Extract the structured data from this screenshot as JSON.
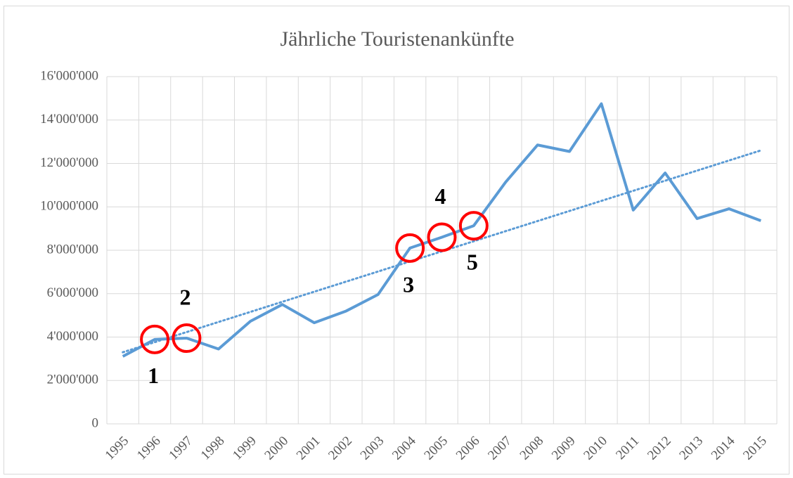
{
  "chart_data": {
    "type": "line",
    "title": "Jährliche Touristenankünfte",
    "categories": [
      "1995",
      "1996",
      "1997",
      "1998",
      "1999",
      "2000",
      "2001",
      "2002",
      "2003",
      "2004",
      "2005",
      "2006",
      "2007",
      "2008",
      "2009",
      "2010",
      "2011",
      "2012",
      "2013",
      "2014",
      "2015"
    ],
    "series": [
      {
        "color": "#5b9bd5",
        "values": [
          3110000,
          3890000,
          3950000,
          3450000,
          4730000,
          5500000,
          4660000,
          5200000,
          5960000,
          8100000,
          8600000,
          9130000,
          11140000,
          12850000,
          12550000,
          14750000,
          9850000,
          11560000,
          9460000,
          9910000,
          9360000
        ]
      }
    ],
    "trendline": {
      "color": "#5b9bd5",
      "values": [
        3300000,
        12600000
      ]
    },
    "annotations": [
      {
        "text": "1",
        "index": 1,
        "position": "below"
      },
      {
        "text": "2",
        "index": 2,
        "position": "above"
      },
      {
        "text": "3",
        "index": 9,
        "position": "below"
      },
      {
        "text": "4",
        "index": 10,
        "position": "above"
      },
      {
        "text": "5",
        "index": 11,
        "position": "below"
      }
    ],
    "annotation_color": "#ff0000",
    "ylim": [
      0,
      16000000
    ],
    "yticks": [
      0,
      {
        "value": 2000000,
        "label": "2'000'000"
      },
      {
        "value": 4000000,
        "label": "4'000'000"
      },
      {
        "value": 6000000,
        "label": "6'000'000"
      },
      {
        "value": 8000000,
        "label": "8'000'000"
      },
      {
        "value": 10000000,
        "label": "10'000'000"
      },
      {
        "value": 12000000,
        "label": "12'000'000"
      },
      {
        "value": 14000000,
        "label": "14'000'000"
      },
      {
        "value": 16000000,
        "label": "16'000'000"
      }
    ],
    "grid": true
  }
}
